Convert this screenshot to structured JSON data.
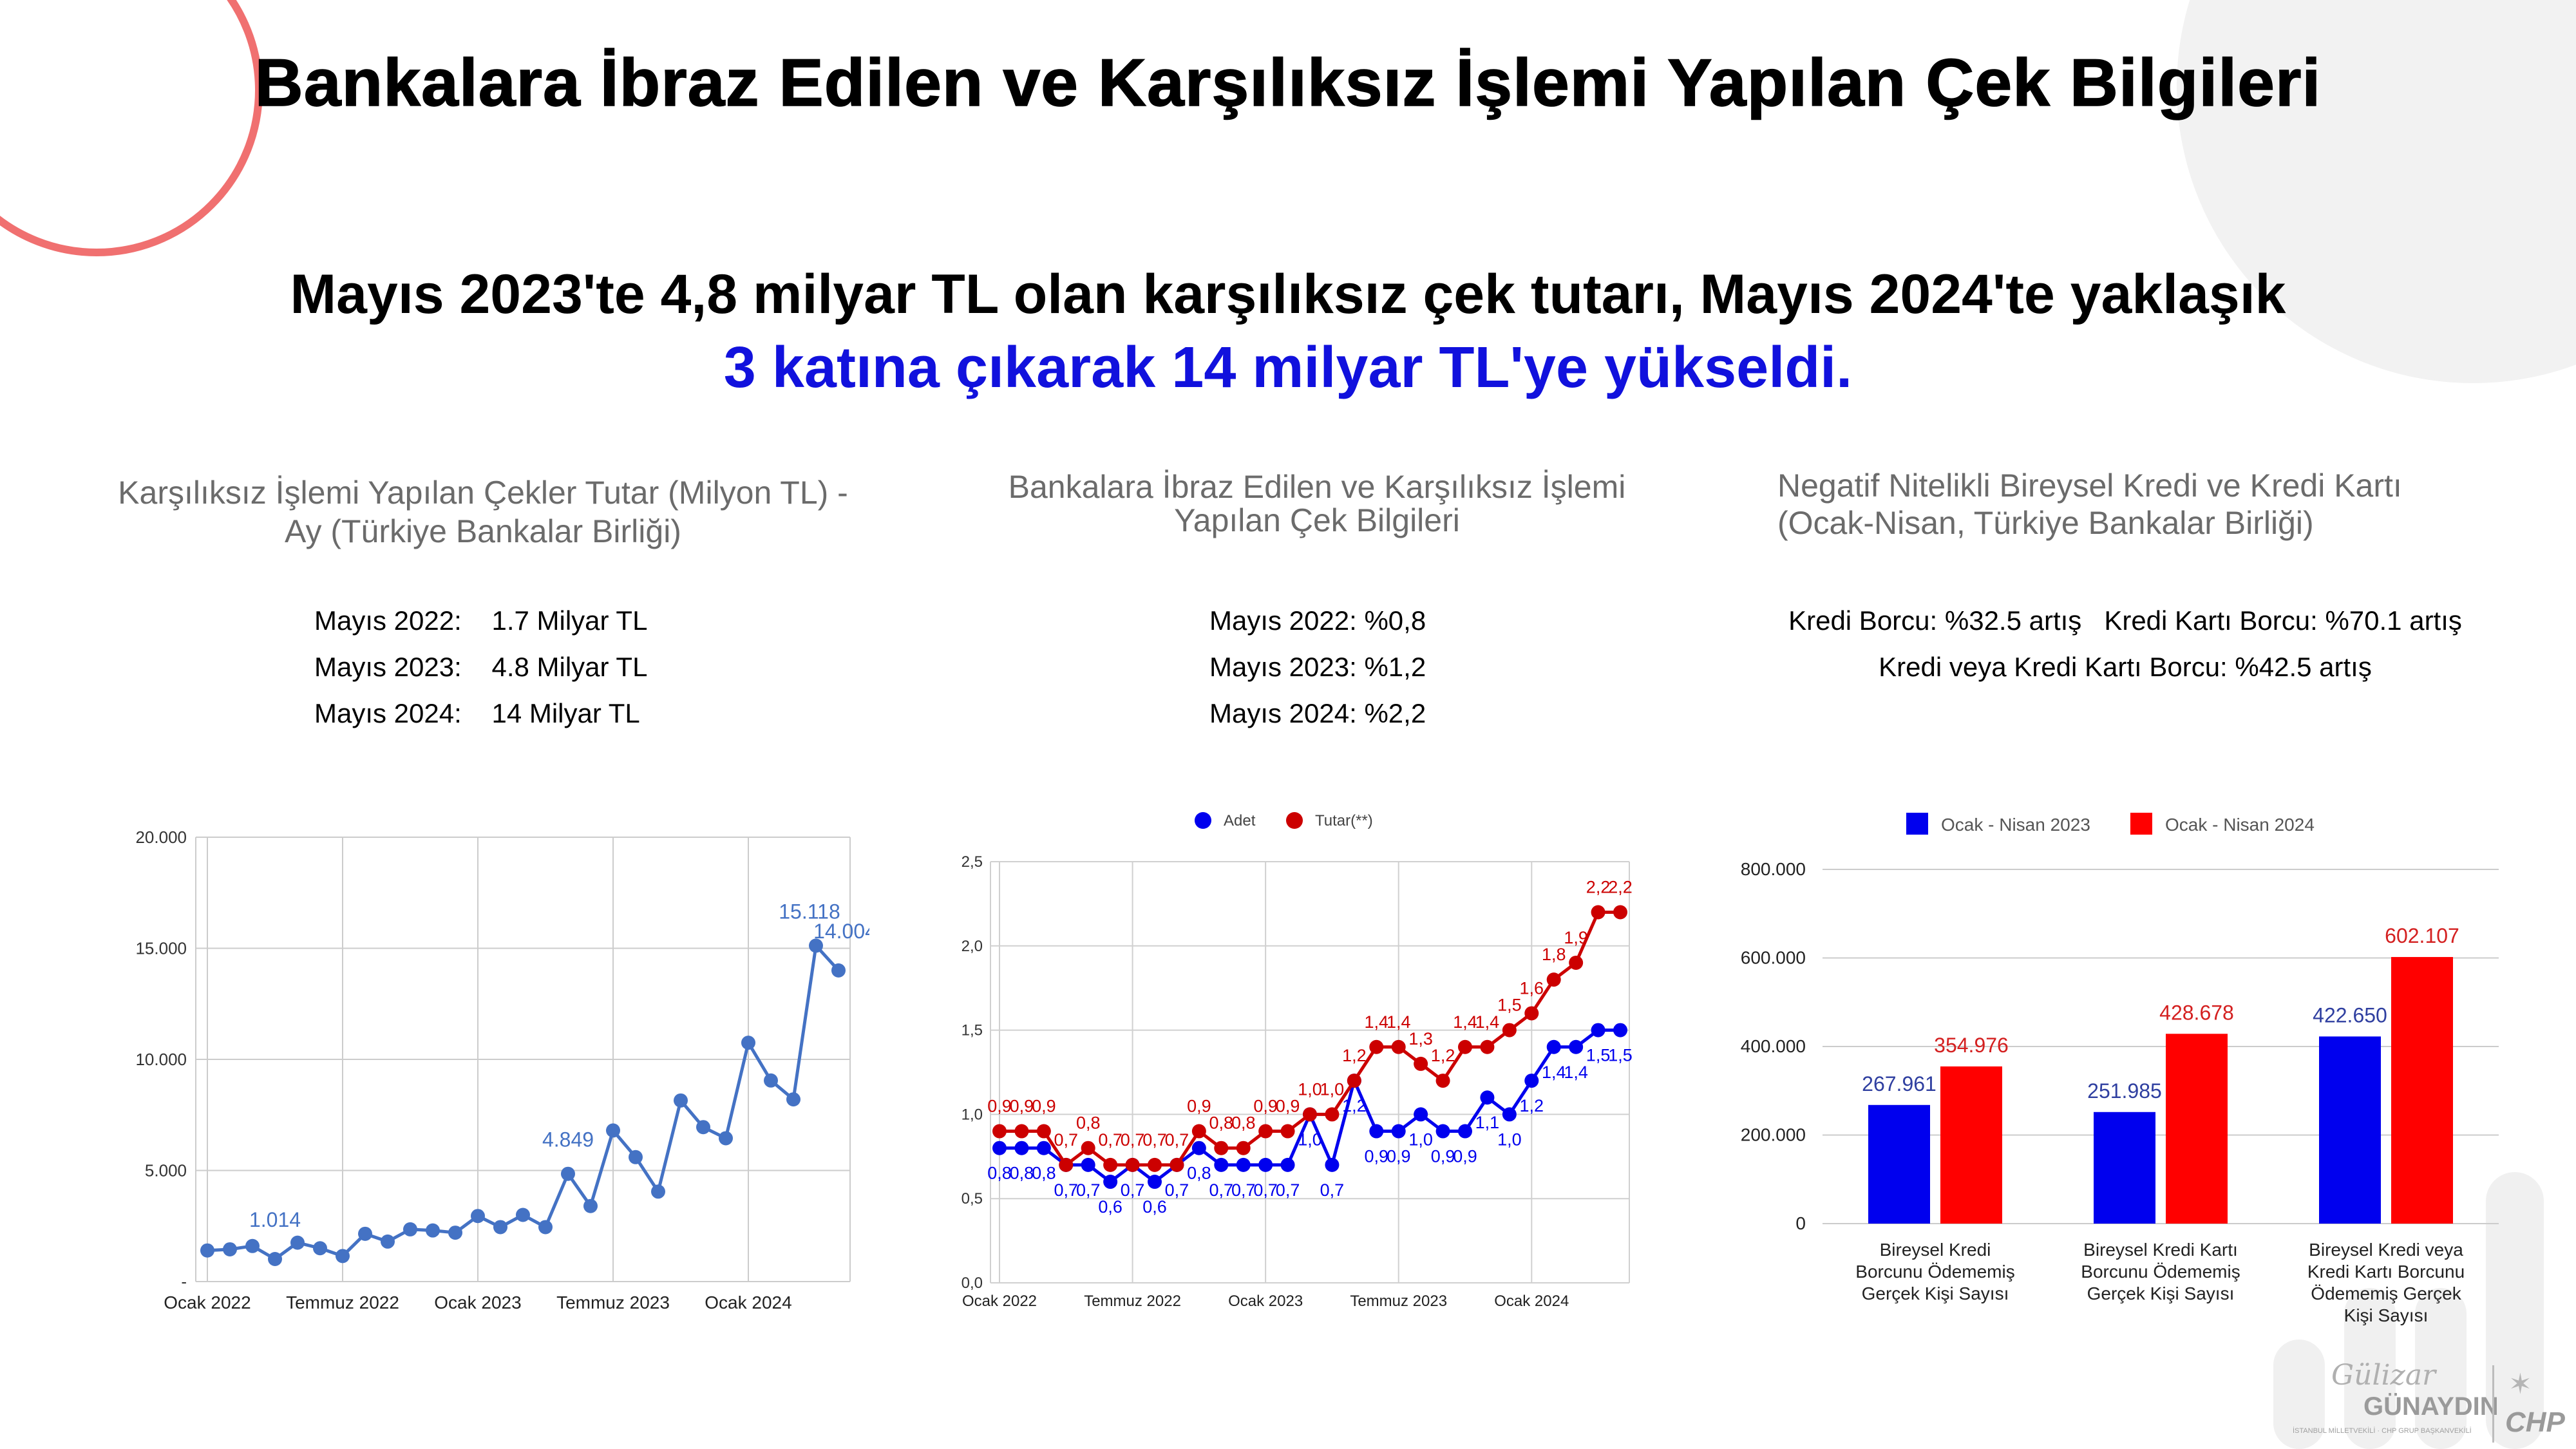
{
  "title": "Bankalara İbraz Edilen ve Karşılıksız İşlemi Yapılan Çek Bilgileri",
  "headline": {
    "line1": "Mayıs 2023'te 4,8 milyar TL olan karşılıksız çek tutarı, Mayıs 2024'te yaklaşık",
    "line2": "3 katına çıkarak 14 milyar TL'ye yükseldi."
  },
  "colors": {
    "accent_blue": "#1111dd",
    "chart1_line": "#4472c4",
    "series_blue": "#0000ee",
    "series_red": "#cc0000",
    "bar_red": "#ff0000",
    "deco_circle": "#f07070"
  },
  "panels": {
    "left": {
      "title_line1": "Karşılıksız İşlemi Yapılan Çekler Tutar (Milyon TL) -",
      "title_line2": "Ay (Türkiye Bankalar Birliği)",
      "stats": [
        "Mayıs 2022:    1.7 Milyar TL",
        "Mayıs 2023:    4.8 Milyar TL",
        "Mayıs 2024:    14 Milyar TL"
      ]
    },
    "middle": {
      "title_line1": "Bankalara İbraz Edilen ve Karşılıksız İşlemi",
      "title_line2": "Yapılan Çek Bilgileri",
      "stats": [
        "Mayıs 2022: %0,8",
        "Mayıs 2023: %1,2",
        "Mayıs 2024: %2,2"
      ]
    },
    "right": {
      "title_line1": "Negatif Nitelikli Bireysel Kredi ve Kredi Kartı",
      "title_line2": "(Ocak-Nisan, Türkiye Bankalar Birliği)",
      "stats": [
        "Kredi Borcu: %32.5 artış   Kredi Kartı Borcu: %70.1 artış",
        "Kredi veya Kredi Kartı Borcu: %42.5 artış"
      ]
    }
  },
  "chart_data": [
    {
      "type": "line",
      "x": [
        "Ocak 2022",
        "Şubat 2022",
        "Mart 2022",
        "Nisan 2022",
        "Mayıs 2022",
        "Haziran 2022",
        "Temmuz 2022",
        "Ağustos 2022",
        "Eylül 2022",
        "Ekim 2022",
        "Kasım 2022",
        "Aralık 2022",
        "Ocak 2023",
        "Şubat 2023",
        "Mart 2023",
        "Nisan 2023",
        "Mayıs 2023",
        "Haziran 2023",
        "Temmuz 2023",
        "Ağustos 2023",
        "Eylül 2023",
        "Ekim 2023",
        "Kasım 2023",
        "Aralık 2023",
        "Ocak 2024",
        "Şubat 2024",
        "Mart 2024",
        "Nisan 2024",
        "Mayıs 2024"
      ],
      "x_tick_labels": [
        "Ocak 2022",
        "Temmuz 2022",
        "Ocak 2023",
        "Temmuz 2023",
        "Ocak 2024"
      ],
      "series": [
        {
          "values": [
            1400,
            1450,
            1600,
            1014,
            1750,
            1500,
            1150,
            2150,
            1800,
            2350,
            2300,
            2200,
            2950,
            2450,
            3000,
            2450,
            4849,
            3400,
            6800,
            5600,
            4050,
            8150,
            6950,
            6450,
            10750,
            9050,
            8200,
            15118,
            14004
          ]
        }
      ],
      "y_tick_labels": [
        "-",
        "5.000",
        "10.000",
        "15.000",
        "20.000"
      ],
      "ylim": [
        0,
        20000
      ],
      "data_labels": [
        "1.014",
        "4.849",
        "15.118",
        "14.004"
      ],
      "grid": true
    },
    {
      "type": "line",
      "x": [
        "Ocak 2022",
        "Şubat 2022",
        "Mart 2022",
        "Nisan 2022",
        "Mayıs 2022",
        "Haziran 2022",
        "Temmuz 2022",
        "Ağustos 2022",
        "Eylül 2022",
        "Ekim 2022",
        "Kasım 2022",
        "Aralık 2022",
        "Ocak 2023",
        "Şubat 2023",
        "Mart 2023",
        "Nisan 2023",
        "Mayıs 2023",
        "Haziran 2023",
        "Temmuz 2023",
        "Ağustos 2023",
        "Eylül 2023",
        "Ekim 2023",
        "Kasım 2023",
        "Aralık 2023",
        "Ocak 2024",
        "Şubat 2024",
        "Mart 2024",
        "Nisan 2024",
        "Mayıs 2024"
      ],
      "x_tick_labels": [
        "Ocak 2022",
        "Temmuz 2022",
        "Ocak 2023",
        "Temmuz 2023",
        "Ocak 2024"
      ],
      "legend": [
        "Adet",
        "Tutar(**)"
      ],
      "legend_position": "top",
      "series": [
        {
          "name": "Adet",
          "values": [
            0.8,
            0.8,
            0.8,
            0.7,
            0.7,
            0.6,
            0.7,
            0.6,
            0.7,
            0.8,
            0.7,
            0.7,
            0.7,
            0.7,
            1.0,
            0.7,
            1.2,
            0.9,
            0.9,
            1.0,
            0.9,
            0.9,
            1.1,
            1.0,
            1.2,
            1.4,
            1.4,
            1.5,
            1.5
          ]
        },
        {
          "name": "Tutar(**)",
          "values": [
            0.9,
            0.9,
            0.9,
            0.7,
            0.8,
            0.7,
            0.7,
            0.7,
            0.7,
            0.9,
            0.8,
            0.8,
            0.9,
            0.9,
            1.0,
            1.0,
            1.2,
            1.4,
            1.4,
            1.3,
            1.2,
            1.4,
            1.4,
            1.5,
            1.6,
            1.8,
            1.9,
            2.2,
            2.2
          ]
        }
      ],
      "y_tick_labels": [
        "0,0",
        "0,5",
        "1,0",
        "1,5",
        "2,0",
        "2,5"
      ],
      "ylim": [
        0,
        2.5
      ],
      "grid": true
    },
    {
      "type": "bar",
      "categories": [
        "Bireysel Kredi Borcunu Ödememiş Gerçek Kişi Sayısı",
        "Bireysel Kredi Kartı Borcunu Ödememiş Gerçek Kişi Sayısı",
        "Bireysel Kredi veya Kredi Kartı Borcunu Ödememiş Gerçek Kişi Sayısı"
      ],
      "category_lines": [
        [
          "Bireysel Kredi",
          "Borcunu Ödememiş",
          "Gerçek Kişi Sayısı"
        ],
        [
          "Bireysel Kredi Kartı",
          "Borcunu Ödememiş",
          "Gerçek Kişi Sayısı"
        ],
        [
          "Bireysel Kredi veya",
          "Kredi Kartı Borcunu",
          "Ödememiş Gerçek",
          "Kişi Sayısı"
        ]
      ],
      "series": [
        {
          "name": "Ocak - Nisan 2023",
          "values": [
            267961,
            251985,
            422650
          ],
          "labels": [
            "267.961",
            "251.985",
            "422.650"
          ]
        },
        {
          "name": "Ocak - Nisan 2024",
          "values": [
            354976,
            428678,
            602107
          ],
          "labels": [
            "354.976",
            "428.678",
            "602.107"
          ]
        }
      ],
      "y_tick_labels": [
        "0",
        "200.000",
        "400.000",
        "600.000",
        "800.000"
      ],
      "ylim": [
        0,
        800000
      ],
      "legend_position": "top",
      "grid": true
    }
  ],
  "footer": {
    "signature": "Gülizar",
    "name": "GÜNAYDIN",
    "subtitle": "İSTANBUL MİLLETVEKİLİ · CHP GRUP BAŞKANVEKİLİ",
    "party": "CHP"
  }
}
